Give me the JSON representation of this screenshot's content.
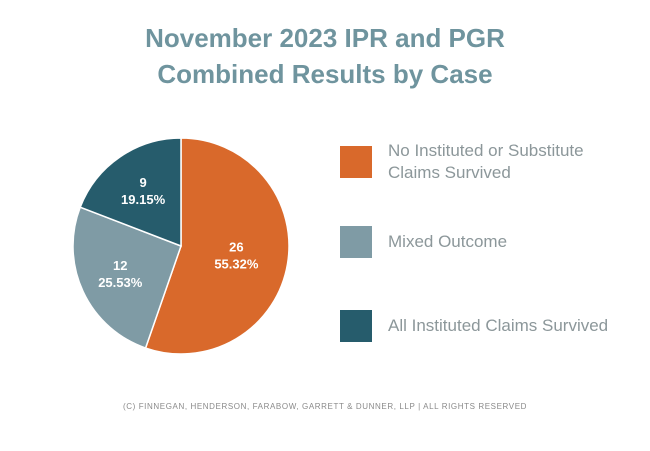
{
  "chart_data": {
    "type": "pie",
    "title": [
      "November 2023 IPR and PGR",
      "Combined Results by Case"
    ],
    "slices": [
      {
        "label": "No Instituted or Substitute Claims Survived",
        "value": 26,
        "percent": "55.32%",
        "color": "#d9692b"
      },
      {
        "label": "Mixed Outcome",
        "value": 12,
        "percent": "25.53%",
        "color": "#7f9ba5"
      },
      {
        "label": "All Instituted Claims Survived",
        "value": 9,
        "percent": "19.15%",
        "color": "#265c6c"
      }
    ],
    "legend_placement": "right"
  },
  "footer": "(C) FINNEGAN, HENDERSON, FARABOW, GARRETT & DUNNER, LLP | ALL RIGHTS RESERVED"
}
